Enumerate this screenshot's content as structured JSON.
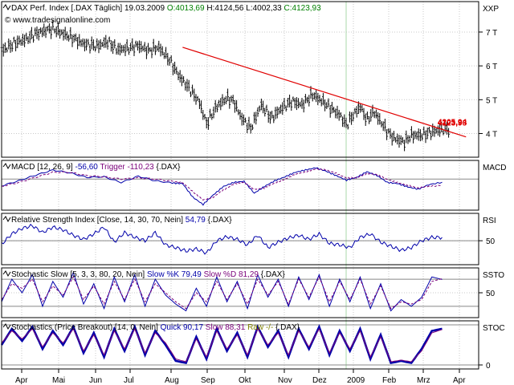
{
  "chart_data": {
    "type": "line",
    "months": [
      "Apr",
      "Mai",
      "Jun",
      "Jul",
      "Aug",
      "Sep",
      "Okt",
      "Nov",
      "Dez",
      "2009",
      "Feb",
      "Mrz",
      "Apr"
    ],
    "colors": {
      "price": "#000000",
      "trendline": "#e00000",
      "indicator_main": "#0000aa",
      "indicator_signal": "#7a007a",
      "grid": "#c8c8c8",
      "vline": "#a8d8a8",
      "level": "#888888",
      "frame": "#000000",
      "current_price": "#e00000"
    },
    "panels": [
      {
        "id": "price",
        "header": [
          {
            "text": "DAX Perf. Index [.DAX Täglich] 19.03.2009 ",
            "color": "#000000"
          },
          {
            "text": "O:4013,69",
            "color": "#008000"
          },
          {
            "text": " H:4124,56 L:4002,33 ",
            "color": "#000000"
          },
          {
            "text": "C:4123,93",
            "color": "#008000"
          }
        ],
        "scale_label": "XXP",
        "ylim": [
          3300,
          7900
        ],
        "yticks": [
          {
            "v": 4000,
            "label": "4 T"
          },
          {
            "v": 5000,
            "label": "5 T"
          },
          {
            "v": 6000,
            "label": "6 T"
          },
          {
            "v": 7000,
            "label": "7 T"
          }
        ],
        "current_price_labels": [
          "4205,94",
          "4123,93"
        ],
        "series": [
          {
            "name": "DAX",
            "style": "ohlc",
            "x": [
              0,
              8,
              14,
              20,
              26,
              30,
              36,
              42,
              48,
              56,
              62,
              68,
              74,
              80,
              86,
              92,
              98,
              104,
              108,
              112,
              116,
              120,
              126,
              132,
              136,
              140,
              146,
              152,
              158,
              164,
              170,
              176,
              182,
              188,
              194,
              198,
              202,
              206,
              210,
              214,
              218,
              222,
              226,
              230,
              236,
              240,
              246,
              252,
              258,
              262
            ],
            "values": [
              6450,
              6680,
              6780,
              6950,
              7050,
              7100,
              6950,
              6820,
              6650,
              6580,
              6720,
              6480,
              6520,
              6600,
              6450,
              6550,
              6200,
              5700,
              5450,
              5200,
              4900,
              4300,
              4800,
              5050,
              4950,
              4500,
              4150,
              4850,
              4450,
              4750,
              4950,
              4850,
              5150,
              4950,
              4700,
              4550,
              4250,
              4550,
              4800,
              4400,
              4650,
              4350,
              4050,
              3850,
              3750,
              3950,
              3950,
              4050,
              4123.93,
              4123.93
            ]
          }
        ],
        "trendline": {
          "x": [
            106,
            272
          ],
          "values": [
            6550,
            3900
          ]
        }
      },
      {
        "id": "macd",
        "header": [
          {
            "text": "MACD [12, 26, 9] ",
            "color": "#000000"
          },
          {
            "text": "-56,60 ",
            "color": "#0000aa"
          },
          {
            "text": "Trigger -110,23 ",
            "color": "#7a007a"
          },
          {
            "text": "{.DAX}",
            "color": "#000000"
          }
        ],
        "scale_label": "MACD",
        "ylim": [
          -550,
          330
        ],
        "yticks": [],
        "level_lines": [
          0
        ],
        "series": [
          {
            "name": "MACD",
            "style": "line",
            "x": [
              0,
              10,
              20,
              30,
              40,
              50,
              60,
              70,
              80,
              90,
              100,
              106,
              112,
              118,
              124,
              130,
              136,
              142,
              148,
              154,
              160,
              166,
              172,
              178,
              184,
              190,
              196,
              202,
              208,
              214,
              220,
              226,
              232,
              238,
              244,
              250,
              258
            ],
            "values": [
              -120,
              -30,
              70,
              160,
              110,
              30,
              40,
              -60,
              50,
              -30,
              -70,
              -80,
              -320,
              -450,
              -280,
              -130,
              -60,
              -40,
              -250,
              -130,
              -30,
              40,
              120,
              160,
              200,
              140,
              60,
              -20,
              30,
              130,
              60,
              -60,
              -80,
              -140,
              -180,
              -100,
              -56.6
            ]
          },
          {
            "name": "Trigger",
            "style": "dash",
            "x": [
              0,
              10,
              20,
              30,
              40,
              50,
              60,
              70,
              80,
              90,
              100,
              106,
              112,
              118,
              124,
              130,
              136,
              142,
              148,
              154,
              160,
              166,
              172,
              178,
              184,
              190,
              196,
              202,
              208,
              214,
              220,
              226,
              232,
              238,
              244,
              250,
              258
            ],
            "values": [
              -130,
              -60,
              30,
              120,
              120,
              60,
              40,
              0,
              20,
              0,
              -40,
              -60,
              -220,
              -370,
              -320,
              -190,
              -90,
              -60,
              -180,
              -160,
              -70,
              0,
              80,
              130,
              180,
              160,
              100,
              20,
              20,
              100,
              80,
              -10,
              -60,
              -110,
              -160,
              -130,
              -110.23
            ]
          }
        ]
      },
      {
        "id": "rsi",
        "header": [
          {
            "text": "Relative Strength Index [Close, 14, 30, 70, Nein] ",
            "color": "#000000"
          },
          {
            "text": "54,79 ",
            "color": "#0000aa"
          },
          {
            "text": "{.DAX}",
            "color": "#000000"
          }
        ],
        "scale_label": "RSI",
        "ylim": [
          15,
          90
        ],
        "yticks": [
          {
            "v": 50,
            "label": "50"
          }
        ],
        "level_lines": [
          50
        ],
        "series": [
          {
            "name": "RSI",
            "style": "line",
            "x": [
              0,
              6,
              12,
              18,
              24,
              30,
              36,
              42,
              48,
              54,
              60,
              66,
              72,
              78,
              84,
              90,
              96,
              102,
              108,
              114,
              120,
              126,
              132,
              138,
              144,
              150,
              156,
              162,
              168,
              174,
              180,
              186,
              192,
              198,
              204,
              210,
              216,
              222,
              228,
              234,
              240,
              246,
              252,
              258
            ],
            "values": [
              45,
              60,
              68,
              72,
              62,
              70,
              66,
              58,
              52,
              60,
              70,
              48,
              62,
              55,
              50,
              62,
              44,
              40,
              35,
              38,
              32,
              50,
              56,
              52,
              44,
              58,
              40,
              48,
              54,
              58,
              52,
              60,
              46,
              44,
              40,
              55,
              60,
              48,
              42,
              36,
              40,
              50,
              55,
              54.79
            ]
          }
        ]
      },
      {
        "id": "stoch_slow",
        "header": [
          {
            "text": "Stochastic Slow [5, 3, 3, 80, 20, Nein] ",
            "color": "#000000"
          },
          {
            "text": "Slow %K 79,49 ",
            "color": "#0000aa"
          },
          {
            "text": "Slow %D 81,29 ",
            "color": "#7a007a"
          },
          {
            "text": "{.DAX}",
            "color": "#000000"
          }
        ],
        "scale_label": "SSTO",
        "ylim": [
          -5,
          105
        ],
        "yticks": [
          {
            "v": 50,
            "label": "50"
          }
        ],
        "level_lines": [
          80,
          20
        ],
        "series": [
          {
            "name": "Slow %K",
            "style": "line",
            "x": [
              0,
              6,
              12,
              18,
              24,
              30,
              36,
              42,
              48,
              54,
              60,
              66,
              72,
              78,
              84,
              90,
              96,
              102,
              108,
              114,
              120,
              126,
              132,
              138,
              144,
              150,
              156,
              162,
              168,
              174,
              180,
              186,
              192,
              198,
              204,
              210,
              216,
              222,
              228,
              234,
              240,
              246,
              252,
              258
            ],
            "values": [
              30,
              80,
              50,
              90,
              20,
              75,
              40,
              95,
              25,
              70,
              15,
              85,
              30,
              90,
              20,
              80,
              45,
              25,
              10,
              60,
              20,
              85,
              30,
              75,
              15,
              90,
              40,
              80,
              20,
              85,
              35,
              90,
              20,
              80,
              30,
              85,
              15,
              70,
              10,
              35,
              20,
              40,
              85,
              79.49
            ]
          },
          {
            "name": "Slow %D",
            "style": "dash",
            "x": [
              0,
              6,
              12,
              18,
              24,
              30,
              36,
              42,
              48,
              54,
              60,
              66,
              72,
              78,
              84,
              90,
              96,
              102,
              108,
              114,
              120,
              126,
              132,
              138,
              144,
              150,
              156,
              162,
              168,
              174,
              180,
              186,
              192,
              198,
              204,
              210,
              216,
              222,
              228,
              234,
              240,
              246,
              252,
              258
            ],
            "values": [
              35,
              70,
              60,
              80,
              30,
              65,
              45,
              85,
              35,
              65,
              25,
              75,
              35,
              80,
              30,
              70,
              50,
              30,
              15,
              50,
              30,
              75,
              35,
              70,
              25,
              80,
              45,
              75,
              25,
              80,
              40,
              85,
              30,
              75,
              35,
              80,
              25,
              65,
              15,
              30,
              25,
              35,
              75,
              81.29
            ]
          }
        ]
      },
      {
        "id": "stoch_breakout",
        "header": [
          {
            "text": "Stochastics (Price Breakout) [14, 0, Nein] ",
            "color": "#000000"
          },
          {
            "text": "Quick 90,17 ",
            "color": "#0000aa"
          },
          {
            "text": "Slow 88,31 ",
            "color": "#7a007a"
          },
          {
            "text": "Raw -/- ",
            "color": "#808000"
          },
          {
            "text": "{.DAX}",
            "color": "#000000"
          }
        ],
        "scale_label": "STOC",
        "ylim": [
          -10,
          110
        ],
        "yticks": [
          {
            "v": 0,
            "label": "0"
          }
        ],
        "level_lines": [
          100,
          0
        ],
        "series": [
          {
            "name": "Quick",
            "style": "thick",
            "x": [
              0,
              6,
              12,
              18,
              24,
              30,
              36,
              42,
              48,
              54,
              60,
              66,
              72,
              78,
              84,
              90,
              96,
              102,
              108,
              114,
              120,
              126,
              132,
              138,
              144,
              150,
              156,
              162,
              168,
              174,
              180,
              186,
              192,
              198,
              204,
              210,
              216,
              222,
              228,
              234,
              240,
              246,
              252,
              258
            ],
            "values": [
              50,
              90,
              60,
              95,
              40,
              85,
              50,
              95,
              30,
              80,
              20,
              90,
              35,
              95,
              25,
              85,
              50,
              10,
              5,
              70,
              15,
              90,
              35,
              80,
              20,
              95,
              45,
              85,
              20,
              90,
              40,
              95,
              25,
              85,
              35,
              90,
              15,
              75,
              5,
              10,
              5,
              40,
              85,
              90.17
            ]
          },
          {
            "name": "Slow",
            "style": "line",
            "x": [
              0,
              6,
              12,
              18,
              24,
              30,
              36,
              42,
              48,
              54,
              60,
              66,
              72,
              78,
              84,
              90,
              96,
              102,
              108,
              114,
              120,
              126,
              132,
              138,
              144,
              150,
              156,
              162,
              168,
              174,
              180,
              186,
              192,
              198,
              204,
              210,
              216,
              222,
              228,
              234,
              240,
              246,
              252,
              258
            ],
            "values": [
              55,
              85,
              65,
              90,
              45,
              80,
              55,
              90,
              35,
              75,
              25,
              85,
              40,
              90,
              30,
              80,
              55,
              15,
              8,
              65,
              20,
              85,
              40,
              75,
              25,
              90,
              50,
              80,
              25,
              85,
              45,
              90,
              30,
              80,
              40,
              85,
              20,
              70,
              8,
              12,
              8,
              35,
              80,
              88.31
            ]
          }
        ]
      }
    ]
  },
  "watermark": "© www.tradesignalonline.com"
}
